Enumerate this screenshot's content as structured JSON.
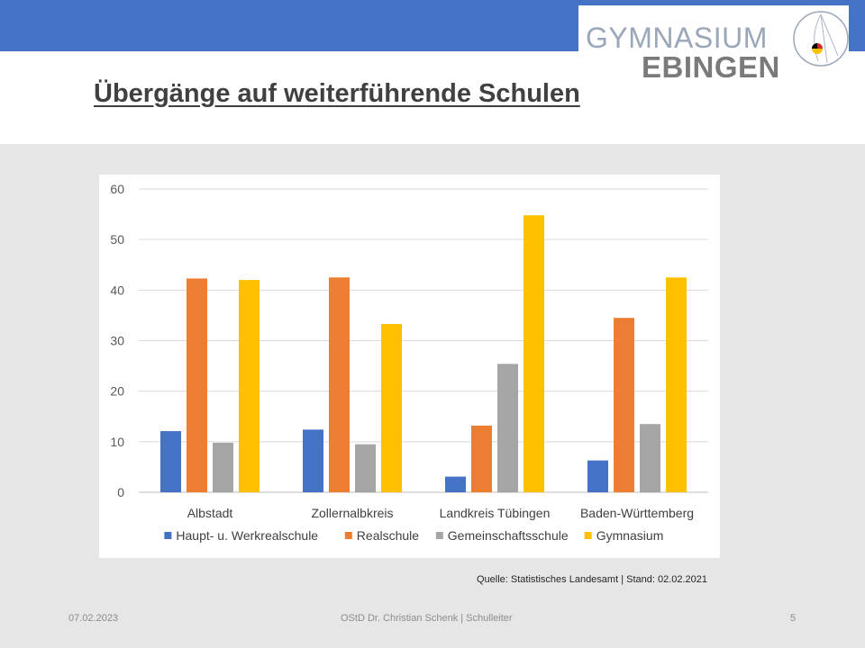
{
  "header": {
    "logo_line1": "GYMNASIUM",
    "logo_line2": "EBINGEN",
    "title": "Übergänge auf weiterführende Schulen",
    "bar_color": "#4472c4"
  },
  "chart_data": {
    "type": "bar",
    "categories": [
      "Albstadt",
      "Zollernalbkreis",
      "Landkreis Tübingen",
      "Baden-Württemberg"
    ],
    "series": [
      {
        "name": "Haupt- u. Werkrealschule",
        "color": "#4472c4",
        "values": [
          12.1,
          12.4,
          3.1,
          6.3
        ]
      },
      {
        "name": "Realschule",
        "color": "#ed7d31",
        "values": [
          42.3,
          42.5,
          13.2,
          34.5
        ]
      },
      {
        "name": "Gemeinschaftsschule",
        "color": "#a5a5a5",
        "values": [
          9.8,
          9.5,
          25.4,
          13.5
        ]
      },
      {
        "name": "Gymnasium",
        "color": "#ffc000",
        "values": [
          42.0,
          33.3,
          54.8,
          42.5
        ]
      }
    ],
    "yticks": [
      "0",
      "10",
      "20",
      "30",
      "40",
      "50",
      "60"
    ],
    "ylim": [
      0,
      60
    ],
    "grid": true,
    "legend_position": "bottom",
    "title": "",
    "xlabel": "",
    "ylabel": ""
  },
  "source_note": "Quelle: Statistisches Landesamt | Stand: 02.02.2021",
  "footer": {
    "date": "07.02.2023",
    "author": "OStD Dr. Christian Schenk | Schulleiter",
    "page": "5"
  }
}
